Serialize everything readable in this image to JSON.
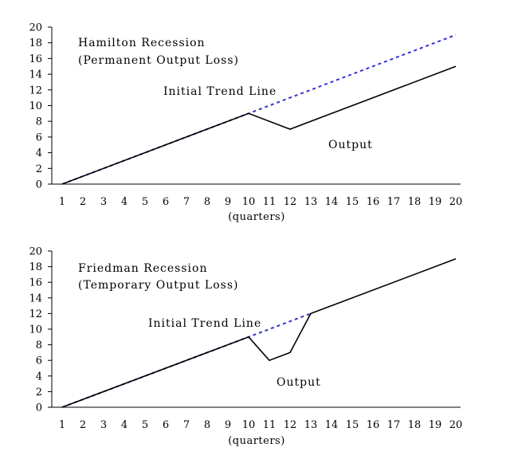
{
  "chart_data": [
    {
      "type": "line",
      "title": "",
      "annotations": [
        {
          "key": "title1",
          "text": "Hamilton Recession"
        },
        {
          "key": "title2",
          "text": "(Permanent Output Loss)"
        },
        {
          "key": "trend",
          "text": "Initial Trend Line"
        },
        {
          "key": "output",
          "text": "Output"
        }
      ],
      "xlabel": "(quarters)",
      "ylabel": "",
      "x": [
        1,
        2,
        3,
        4,
        5,
        6,
        7,
        8,
        9,
        10,
        11,
        12,
        13,
        14,
        15,
        16,
        17,
        18,
        19,
        20
      ],
      "xlim": [
        1,
        20
      ],
      "ylim": [
        0,
        20
      ],
      "yticks": [
        0,
        2,
        4,
        6,
        8,
        10,
        12,
        14,
        16,
        18,
        20
      ],
      "grid": false,
      "series": [
        {
          "key": "trend",
          "style": "dotted",
          "color": "#3333cc",
          "points": [
            [
              1,
              0
            ],
            [
              10,
              9
            ],
            [
              20,
              19
            ]
          ]
        },
        {
          "key": "output",
          "style": "solid",
          "color": "#000000",
          "points": [
            [
              1,
              0
            ],
            [
              10,
              9
            ],
            [
              12,
              7
            ],
            [
              20,
              15
            ]
          ]
        }
      ]
    },
    {
      "type": "line",
      "title": "",
      "annotations": [
        {
          "key": "title1",
          "text": "Friedman Recession"
        },
        {
          "key": "title2",
          "text": "(Temporary Output Loss)"
        },
        {
          "key": "trend",
          "text": "Initial Trend Line"
        },
        {
          "key": "output",
          "text": "Output"
        }
      ],
      "xlabel": "(quarters)",
      "ylabel": "",
      "x": [
        1,
        2,
        3,
        4,
        5,
        6,
        7,
        8,
        9,
        10,
        11,
        12,
        13,
        14,
        15,
        16,
        17,
        18,
        19,
        20
      ],
      "xlim": [
        1,
        20
      ],
      "ylim": [
        0,
        20
      ],
      "yticks": [
        0,
        2,
        4,
        6,
        8,
        10,
        12,
        14,
        16,
        18,
        20
      ],
      "grid": false,
      "series": [
        {
          "key": "trend",
          "style": "dotted",
          "color": "#3333cc",
          "points": [
            [
              1,
              0
            ],
            [
              10,
              9
            ],
            [
              13,
              12
            ]
          ]
        },
        {
          "key": "output",
          "style": "solid",
          "color": "#000000",
          "points": [
            [
              1,
              0
            ],
            [
              10,
              9
            ],
            [
              11,
              6
            ],
            [
              12,
              7
            ],
            [
              13,
              12
            ],
            [
              20,
              19
            ]
          ]
        }
      ]
    }
  ]
}
